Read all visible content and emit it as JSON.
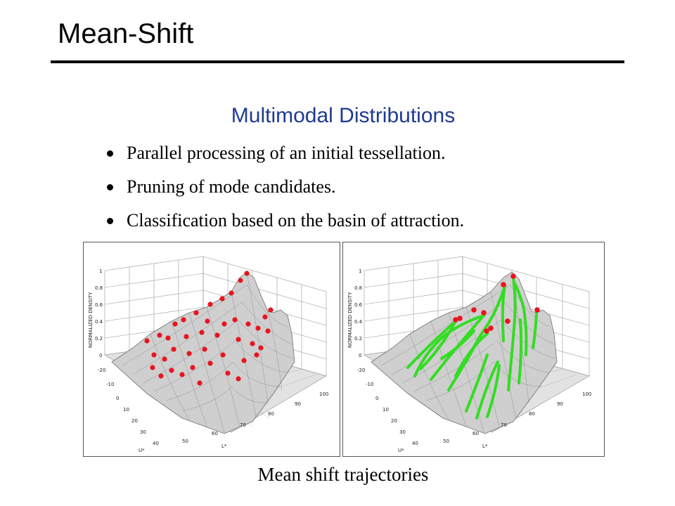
{
  "slide": {
    "title": "Mean-Shift",
    "subtitle": "Multimodal Distributions",
    "caption": "Mean shift trajectories"
  },
  "bullets": [
    "Parallel processing of an initial tessellation.",
    "Pruning of mode candidates.",
    "Classification based on the basin of attraction."
  ],
  "plots": {
    "z_axis_label": "NORMALIZED DENSITY",
    "z_ticks": [
      "1",
      "0.8",
      "0.6",
      "0.4",
      "0.2",
      "0"
    ],
    "u_axis_label": "U*",
    "u_ticks": [
      "-20",
      "-10",
      "0",
      "10",
      "20",
      "30",
      "40"
    ],
    "l_axis_label": "L*",
    "l_ticks": [
      "50",
      "60",
      "70",
      "80",
      "90",
      "100"
    ],
    "point_color": "#e8141e",
    "trajectory_color": "#33dd22",
    "surface_color": "#cfcfcf"
  }
}
